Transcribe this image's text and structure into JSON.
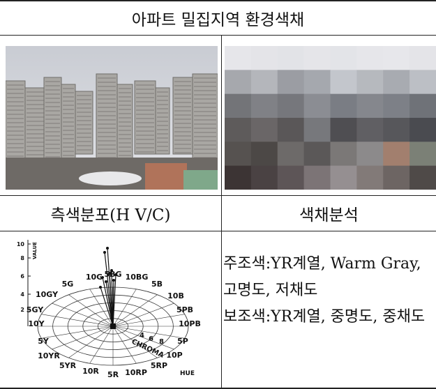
{
  "header": {
    "title": "아파트 밀집지역 환경색채"
  },
  "table": {
    "headers": [
      "측색분포(H V/C)",
      "색채분석"
    ],
    "analysis": [
      "주조색:YR계열, Warm Gray, 고명도, 저채도",
      "보조색:YR계열, 중명도, 중채도"
    ]
  },
  "diagram": {
    "value_axis_label": "VALUE",
    "value_ticks": [
      "10",
      "8",
      "6",
      "4",
      "2"
    ],
    "hue_labels": [
      "10G",
      "5BG",
      "10BG",
      "5B",
      "10B",
      "5PB",
      "10PB",
      "5P",
      "10P",
      "5RP",
      "10RP",
      "5R",
      "10R",
      "5YR",
      "10YR",
      "5Y",
      "10Y",
      "5GY",
      "10GY",
      "5G"
    ],
    "chroma_label": "CHROMA",
    "chroma_ticks": [
      "4",
      "6",
      "8"
    ],
    "hue_axis_label": "HUE"
  }
}
